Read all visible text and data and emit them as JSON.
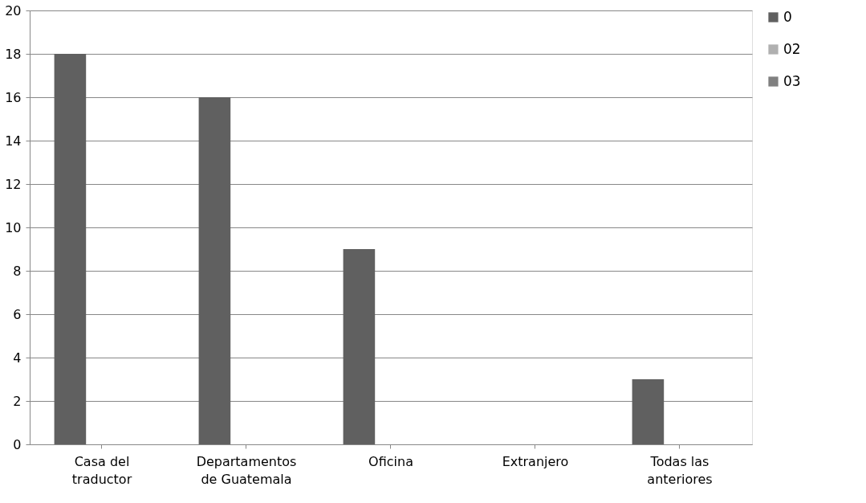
{
  "chart_data": {
    "type": "bar",
    "categories": [
      "Casa del traductor",
      "Departamentos de Guatemala",
      "Oficina",
      "Extranjero",
      "Todas las anteriores"
    ],
    "series": [
      {
        "name": "0",
        "color": "#606060",
        "values": [
          18,
          16,
          9,
          null,
          3
        ]
      },
      {
        "name": "02",
        "color": "#b0b0b0",
        "values": [
          null,
          null,
          null,
          null,
          null
        ]
      },
      {
        "name": "03",
        "color": "#808080",
        "values": [
          null,
          null,
          null,
          null,
          null
        ]
      }
    ],
    "ylim": [
      0,
      20
    ],
    "yticks": [
      0,
      2,
      4,
      6,
      8,
      10,
      12,
      14,
      16,
      18,
      20
    ],
    "grid": "y",
    "legend": "right"
  }
}
